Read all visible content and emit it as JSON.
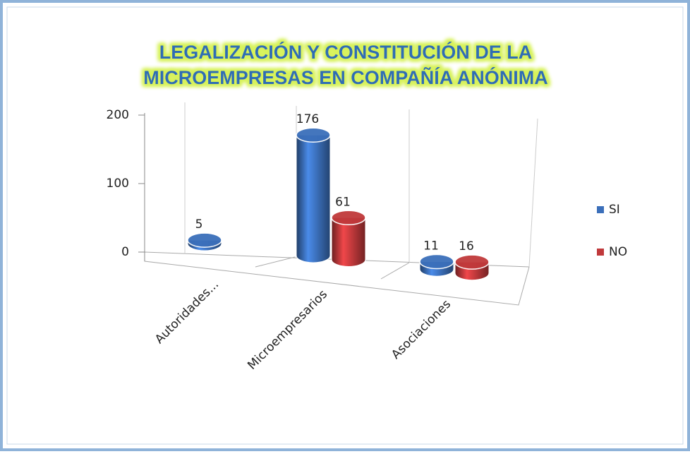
{
  "chart_data": {
    "type": "bar3d",
    "title": [
      "LEGALIZACIÓN Y CONSTITUCIÓN DE LA",
      "MICROEMPRESAS EN COMPAÑÍA ANÓNIMA"
    ],
    "categories": [
      "Autoridades...",
      "Microempresarios",
      "Asociaciones"
    ],
    "series": [
      {
        "name": "SI",
        "color": "#3b6fba",
        "values": [
          5,
          176,
          11
        ]
      },
      {
        "name": "NO",
        "color": "#c0393b",
        "values": [
          null,
          61,
          16
        ]
      }
    ],
    "ylim": [
      0,
      200
    ],
    "yticks": [
      0,
      100,
      200
    ],
    "legend": "right"
  }
}
